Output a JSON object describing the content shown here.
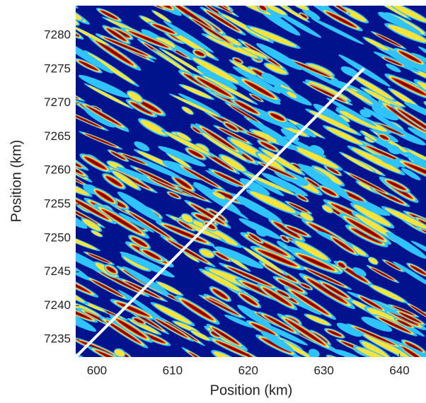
{
  "chart_data": {
    "type": "heatmap",
    "xlabel": "Position (km)",
    "ylabel": "Position (km)",
    "xlim": [
      597.2,
      643.5
    ],
    "ylim": [
      7232.4,
      7284.4
    ],
    "xticks": [
      600,
      610,
      620,
      630,
      640
    ],
    "yticks": [
      7235,
      7240,
      7245,
      7250,
      7255,
      7260,
      7265,
      7270,
      7275,
      7280
    ],
    "colormap": "jet",
    "series": [
      {
        "type": "line",
        "color": "#ffffff",
        "x": [
          597.2,
          635.3
        ],
        "values": [
          7232.4,
          7275.1
        ]
      }
    ]
  }
}
